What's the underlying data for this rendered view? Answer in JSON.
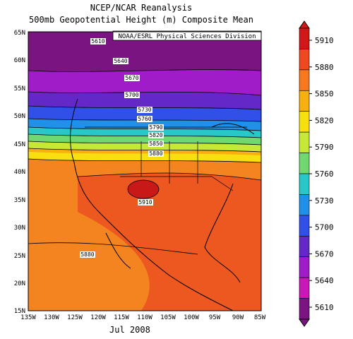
{
  "header": {
    "title_line1": "NCEP/NCAR Reanalysis",
    "title_line2": "500mb Geopotential Height (m) Composite Mean"
  },
  "map": {
    "credit": "NOAA/ESRL Physical Sciences Division",
    "date_label": "Jul 2008",
    "lat_labels": [
      "65N",
      "60N",
      "55N",
      "50N",
      "45N",
      "40N",
      "35N",
      "30N",
      "25N",
      "20N",
      "15N"
    ],
    "lon_labels": [
      "135W",
      "130W",
      "125W",
      "120W",
      "115W",
      "110W",
      "105W",
      "100W",
      "95W",
      "90W",
      "85W"
    ],
    "contour_labels": [
      "5610",
      "5640",
      "5670",
      "5700",
      "5730",
      "5760",
      "5790",
      "5820",
      "5850",
      "5880",
      "5910",
      "5880"
    ]
  },
  "colorbar": {
    "ticks": [
      "5910",
      "5880",
      "5850",
      "5820",
      "5790",
      "5760",
      "5730",
      "5700",
      "5670",
      "5640",
      "5610"
    ],
    "colors": [
      "#d01818",
      "#f04820",
      "#f87820",
      "#f8b010",
      "#f8e010",
      "#c8e838",
      "#70d870",
      "#28c8c8",
      "#2090e8",
      "#3050e8",
      "#6428c8",
      "#a01cc8",
      "#c818b8",
      "#7a1480"
    ]
  }
}
